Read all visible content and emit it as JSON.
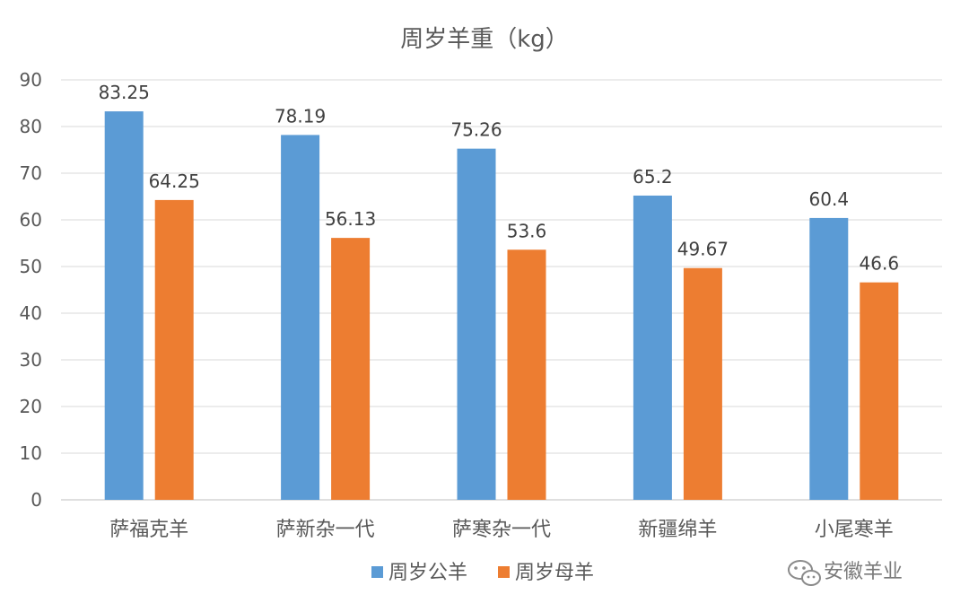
{
  "chart_data": {
    "type": "bar",
    "title": "周岁羊重（kg）",
    "categories": [
      "萨福克羊",
      "萨新杂一代",
      "萨寒杂一代",
      "新疆绵羊",
      "小尾寒羊"
    ],
    "series": [
      {
        "name": "周岁公羊",
        "values": [
          83.25,
          78.19,
          75.26,
          65.2,
          60.4
        ],
        "color": "#5B9BD5"
      },
      {
        "name": "周岁母羊",
        "values": [
          64.25,
          56.13,
          53.6,
          49.67,
          46.6
        ],
        "color": "#ED7D31"
      }
    ],
    "data_labels": [
      [
        "83.25",
        "78.19",
        "75.26",
        "65.2",
        "60.4"
      ],
      [
        "64.25",
        "56.13",
        "53.6",
        "49.67",
        "46.6"
      ]
    ],
    "xlabel": "",
    "ylabel": "",
    "ylim": [
      0,
      90
    ],
    "yticks": [
      0,
      10,
      20,
      30,
      40,
      50,
      60,
      70,
      80,
      90
    ],
    "grid": true,
    "legend": "bottom"
  },
  "watermark": {
    "text": "安徽羊业",
    "icon": "wechat-icon"
  }
}
